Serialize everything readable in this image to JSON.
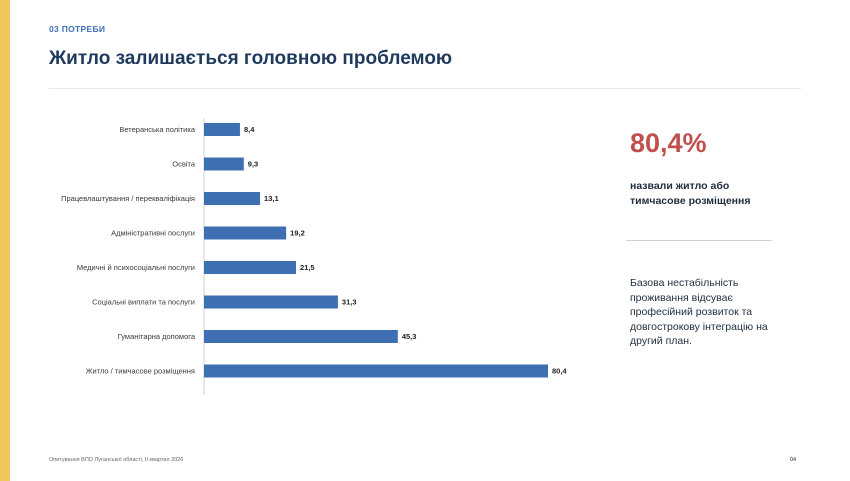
{
  "header": {
    "section_label": "03  ПОТРЕБИ",
    "title": "Житло залишається головною проблемою"
  },
  "highlight": {
    "value": "80,4%",
    "caption": "назвали житло або тимчасове розміщення",
    "description": "Базова нестабільність проживання відсуває професійний розвиток та довгострокову інтеграцію на другий план.",
    "accent_color": "#c0504d"
  },
  "footer": {
    "source": "Опитування ВПО Луганської області, II квартал 2026",
    "page_number": "04"
  },
  "colors": {
    "bar": "#3f6fb3",
    "stripe": "#f2c75c"
  },
  "chart_data": {
    "type": "bar",
    "orientation": "horizontal",
    "categories": [
      "Ветеранська політика",
      "Освіта",
      "Працевлаштування / перекваліфікація",
      "Адміністративні послуги",
      "Медичні й психосоціальні послуги",
      "Соціальні виплати та послуги",
      "Гуманітарна допомога",
      "Житло / тимчасове розміщення"
    ],
    "values": [
      8.4,
      9.3,
      13.1,
      19.2,
      21.5,
      31.3,
      45.3,
      80.4
    ],
    "value_labels": [
      "8,4",
      "9,3",
      "13,1",
      "19,2",
      "21,5",
      "31,3",
      "45,3",
      "80,4"
    ],
    "xlim": [
      0,
      80.4
    ],
    "grid": false,
    "legend": "none"
  }
}
